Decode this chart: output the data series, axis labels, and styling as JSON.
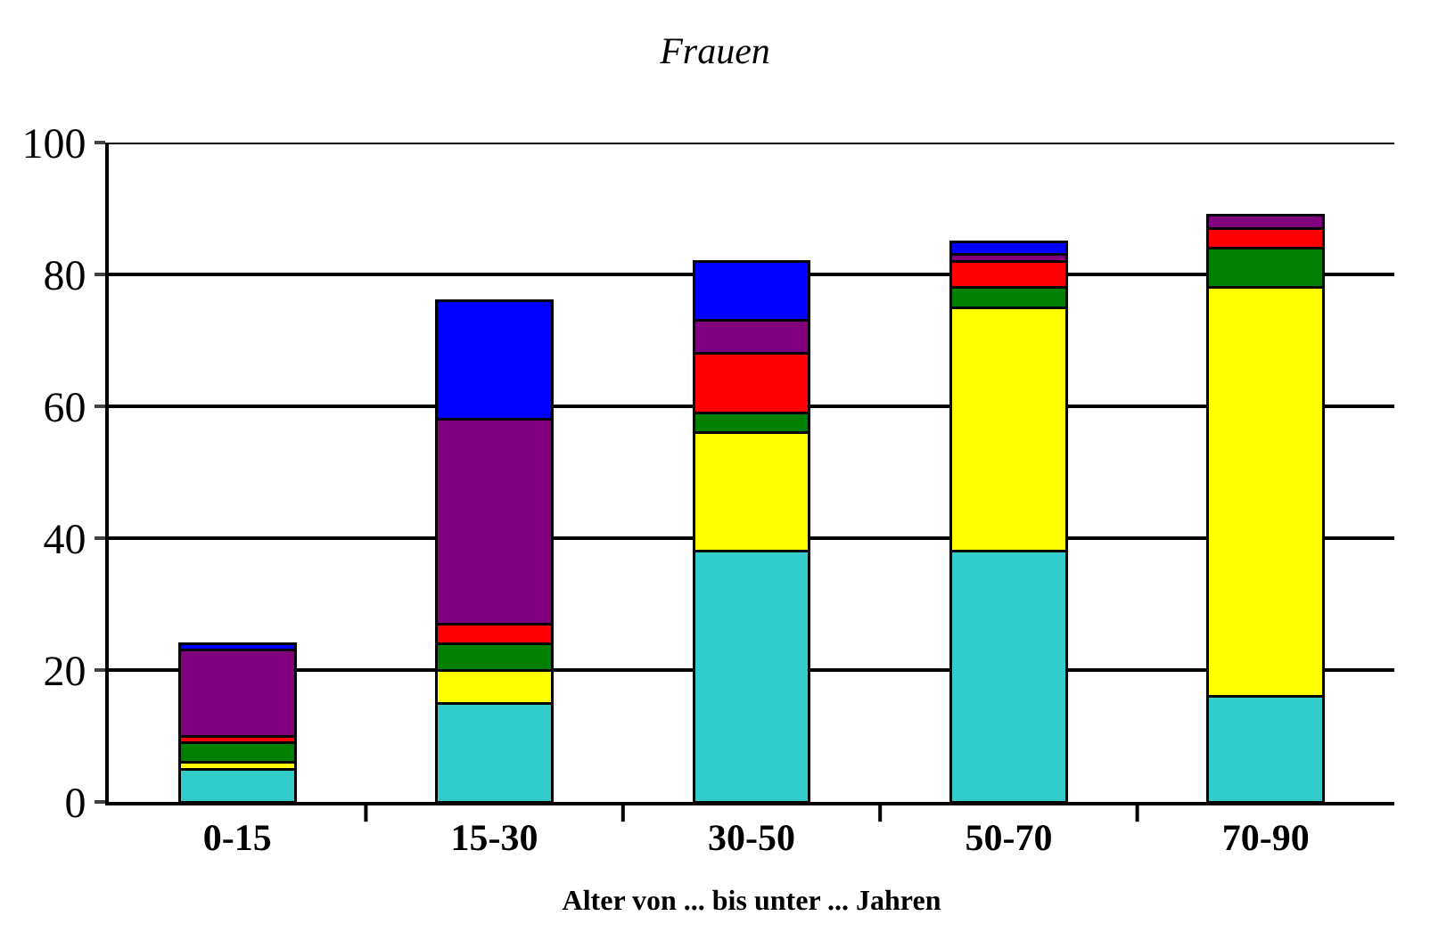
{
  "chart_data": {
    "type": "bar",
    "stacked": true,
    "title": "Frauen",
    "xlabel": "Alter von ... bis unter ... Jahren",
    "categories": [
      "0-15",
      "15-30",
      "30-50",
      "50-70",
      "70-90"
    ],
    "series": [
      {
        "color": "#33cccc",
        "values": [
          5,
          15,
          38,
          38,
          16
        ]
      },
      {
        "color": "#ffff00",
        "values": [
          1,
          5,
          18,
          37,
          62
        ]
      },
      {
        "color": "#008000",
        "values": [
          3,
          4,
          3,
          3,
          6
        ]
      },
      {
        "color": "#ff0000",
        "values": [
          1,
          3,
          9,
          4,
          3
        ]
      },
      {
        "color": "#800080",
        "values": [
          13,
          31,
          5,
          1,
          2
        ]
      },
      {
        "color": "#0000ff",
        "values": [
          1,
          18,
          9,
          2,
          null
        ]
      }
    ],
    "ylim": [
      0,
      100
    ],
    "yticks": [
      0,
      20,
      40,
      60,
      80,
      100
    ],
    "grid": "y"
  }
}
